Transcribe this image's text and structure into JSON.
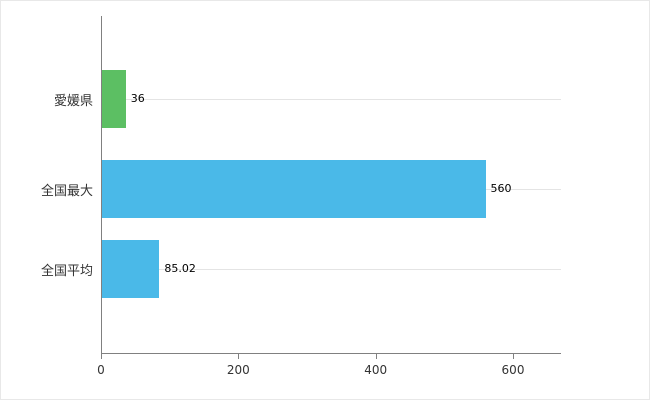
{
  "chart_data": {
    "type": "bar",
    "orientation": "horizontal",
    "title": "",
    "xlabel": "",
    "ylabel": "",
    "categories": [
      "愛媛県",
      "全国最大",
      "全国平均"
    ],
    "values": [
      36,
      560,
      85.02
    ],
    "value_labels": [
      "36",
      "560",
      "85.02"
    ],
    "bar_colors": [
      "#5cbf63",
      "#4ab9e8",
      "#4ab9e8"
    ],
    "x_ticks": [
      "0",
      "200",
      "400",
      "600"
    ],
    "x_tick_values": [
      0,
      200,
      400,
      600
    ],
    "xlim": [
      0,
      670
    ],
    "grid": "horizontal-category-lines",
    "legend_position": "none",
    "colors": {
      "axis": "#808080",
      "gridline": "#e4e4e4",
      "tick_label": "#333333",
      "category_label": "#333333",
      "value_label": "#000000",
      "background": "#ffffff"
    }
  }
}
